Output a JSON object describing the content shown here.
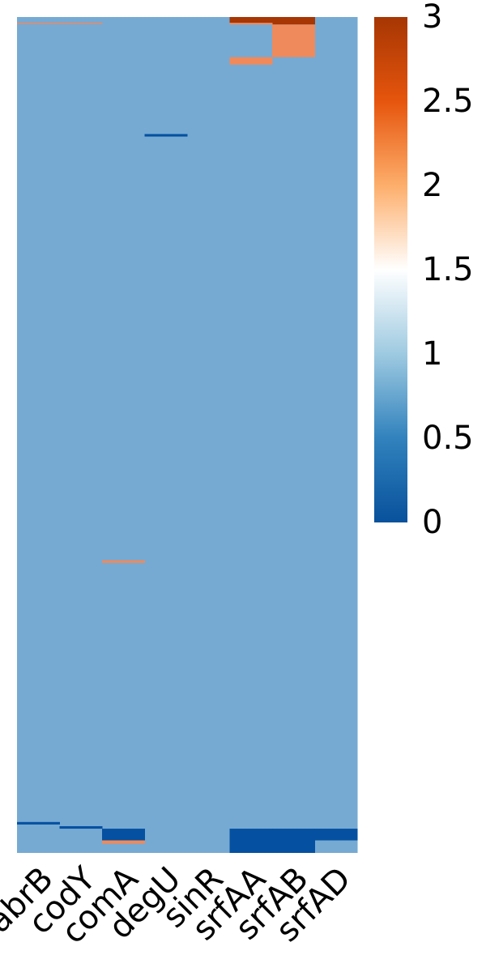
{
  "chart_data": {
    "type": "heatmap",
    "title": "",
    "xlabel": "",
    "ylabel": "",
    "columns": [
      "abrB",
      "codY",
      "comA",
      "degU",
      "sinR",
      "srfAA",
      "srfAB",
      "srfAD"
    ],
    "n_rows": 1000,
    "default_value": 1,
    "vmin": 0,
    "vmax": 3,
    "colorbar": {
      "ticks": [
        0,
        0.5,
        1,
        1.5,
        2,
        2.5,
        3
      ],
      "tick_labels": [
        "0",
        "0.5",
        "1",
        "1.5",
        "2",
        "2.5",
        "3"
      ],
      "stops": [
        {
          "value": 0,
          "color": "#08519c"
        },
        {
          "value": 0.5,
          "color": "#3182bd"
        },
        {
          "value": 1,
          "color": "#9ecae1"
        },
        {
          "value": 1.5,
          "color": "#ffffff"
        },
        {
          "value": 2,
          "color": "#fdae6b"
        },
        {
          "value": 2.5,
          "color": "#e6550d"
        },
        {
          "value": 3,
          "color": "#a63603"
        }
      ]
    },
    "cell_color_overrides": {
      "1": "#76aad3",
      "2": "#ef8a5c",
      "0": "#0550a0",
      "3": "#a63603"
    },
    "nondefault_cells": [
      {
        "column": "abrB",
        "row_start": 7,
        "row_end": 8,
        "value": 2
      },
      {
        "column": "codY",
        "row_start": 7,
        "row_end": 8,
        "value": 2
      },
      {
        "column": "srfAA",
        "row_start": 0,
        "row_end": 7,
        "value": 3
      },
      {
        "column": "srfAB",
        "row_start": 0,
        "row_end": 9,
        "value": 3
      },
      {
        "column": "srfAA",
        "row_start": 7,
        "row_end": 9,
        "value": 2
      },
      {
        "column": "srfAB",
        "row_start": 9,
        "row_end": 48,
        "value": 2
      },
      {
        "column": "srfAA",
        "row_start": 48,
        "row_end": 57,
        "value": 2
      },
      {
        "column": "degU",
        "row_start": 140,
        "row_end": 143,
        "value": 0
      },
      {
        "column": "comA",
        "row_start": 650,
        "row_end": 653,
        "value": 2
      },
      {
        "column": "abrB",
        "row_start": 963,
        "row_end": 966,
        "value": 0
      },
      {
        "column": "codY",
        "row_start": 968,
        "row_end": 971,
        "value": 0
      },
      {
        "column": "comA",
        "row_start": 971,
        "row_end": 985,
        "value": 0
      },
      {
        "column": "comA",
        "row_start": 985,
        "row_end": 989,
        "value": 2
      },
      {
        "column": "srfAA",
        "row_start": 971,
        "row_end": 1000,
        "value": 0
      },
      {
        "column": "srfAB",
        "row_start": 971,
        "row_end": 1000,
        "value": 0
      },
      {
        "column": "srfAD",
        "row_start": 971,
        "row_end": 985,
        "value": 0
      }
    ]
  }
}
